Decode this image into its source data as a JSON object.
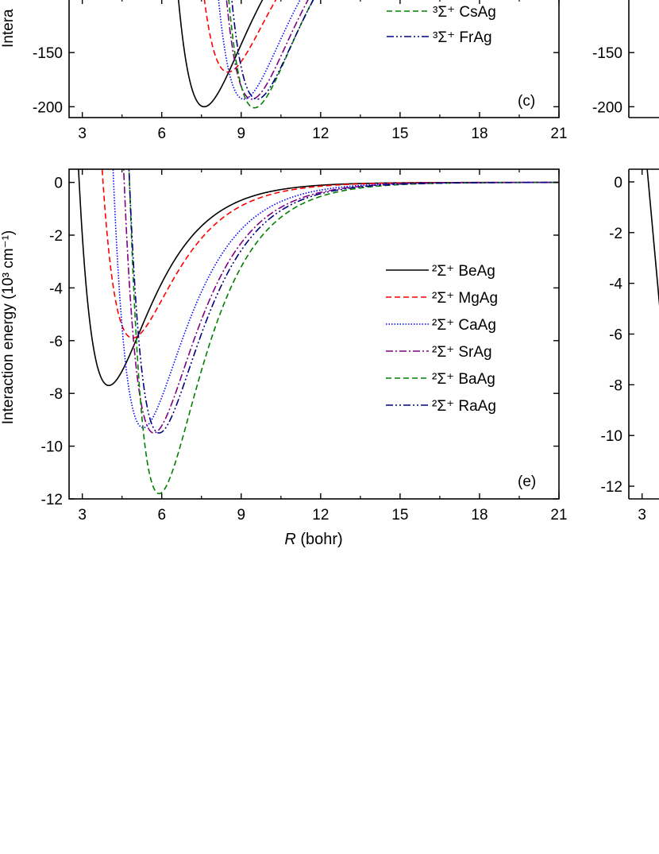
{
  "chart_data": [
    {
      "type": "line",
      "panel_label": "(c)",
      "ylabel": "Intera",
      "xlim": [
        2.5,
        21
      ],
      "ylim": [
        -210,
        -100
      ],
      "x_ticks": [
        3,
        6,
        9,
        12,
        15,
        18,
        21
      ],
      "y_ticks": [
        -150,
        -200
      ],
      "series": [
        {
          "name": "³Σ⁺ CsAg",
          "color": "#008000",
          "dash": "dashed"
        },
        {
          "name": "³Σ⁺ FrAg",
          "color": "#000080",
          "dash": "dashdotdot"
        }
      ],
      "curves": [
        {
          "color": "#000000",
          "dash": "solid",
          "re": 7.6,
          "de": 200
        },
        {
          "color": "#ff0000",
          "dash": "dashed",
          "re": 8.5,
          "de": 168
        },
        {
          "color": "#0000ff",
          "dash": "dotted",
          "re": 9.1,
          "de": 193
        },
        {
          "color": "#800080",
          "dash": "dashdot",
          "re": 9.4,
          "de": 193
        },
        {
          "color": "#008000",
          "dash": "dashed",
          "re": 9.5,
          "de": 201
        },
        {
          "color": "#000080",
          "dash": "dashdotdot",
          "re": 9.6,
          "de": 193
        }
      ]
    },
    {
      "type": "line",
      "panel_label": "(e)",
      "xlabel_italic": "R",
      "xlabel_rest": " (bohr)",
      "ylabel": "Interaction energy  (10³ cm⁻¹)",
      "xlim": [
        2.5,
        21
      ],
      "ylim": [
        -12,
        0.5
      ],
      "x_ticks": [
        3,
        6,
        9,
        12,
        15,
        18,
        21
      ],
      "y_ticks": [
        0,
        -2,
        -4,
        -6,
        -8,
        -10,
        -12
      ],
      "series": [
        {
          "name": "²Σ⁺ BeAg",
          "color": "#000000",
          "dash": "solid",
          "re": 4.0,
          "de": 7.7
        },
        {
          "name": "²Σ⁺ MgAg",
          "color": "#ff0000",
          "dash": "dashed",
          "re": 4.9,
          "de": 5.9
        },
        {
          "name": "²Σ⁺ CaAg",
          "color": "#0000ff",
          "dash": "dotted",
          "re": 5.3,
          "de": 9.3
        },
        {
          "name": "²Σ⁺ SrAg",
          "color": "#800080",
          "dash": "dashdot",
          "re": 5.7,
          "de": 9.5
        },
        {
          "name": "²Σ⁺ BaAg",
          "color": "#008000",
          "dash": "dashed",
          "re": 5.9,
          "de": 11.8
        },
        {
          "name": "²Σ⁺ RaAg",
          "color": "#000080",
          "dash": "dashdotdot",
          "re": 5.9,
          "de": 9.5
        }
      ]
    },
    {
      "type": "line",
      "partial": true,
      "y_ticks": [
        -150,
        -200
      ]
    },
    {
      "type": "line",
      "partial": true,
      "x_ticks": [
        3
      ],
      "y_ticks": [
        0,
        -2,
        -4,
        -6,
        -8,
        -10,
        -12
      ]
    }
  ]
}
